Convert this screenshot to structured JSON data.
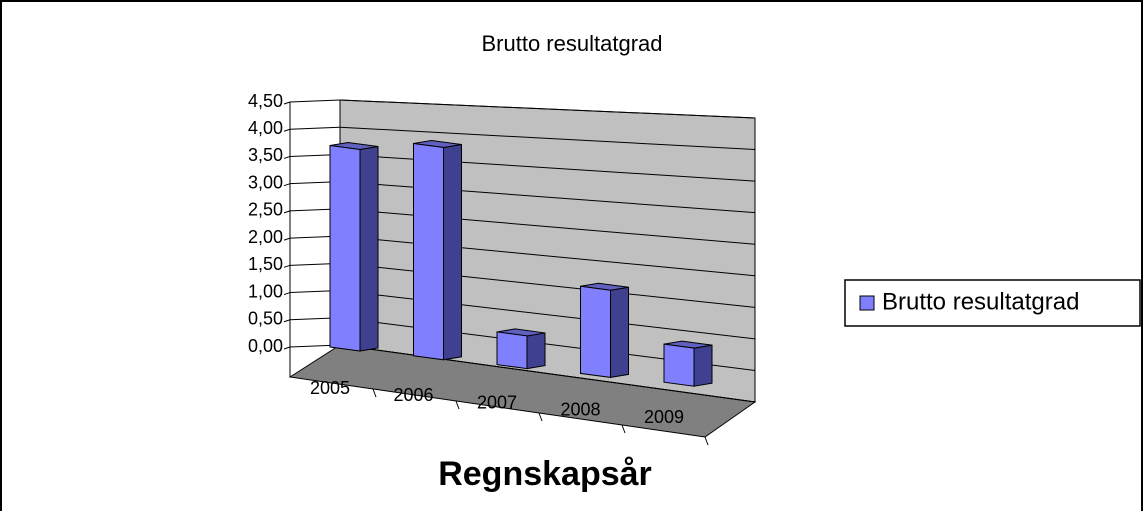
{
  "chart_data": {
    "type": "bar3d",
    "title": "Brutto resultatgrad",
    "categories": [
      "2005",
      "2006",
      "2007",
      "2008",
      "2009"
    ],
    "series": [
      {
        "name": "Brutto resultatgrad",
        "color": "#8080ff",
        "values": [
          3.7,
          3.9,
          0.6,
          1.6,
          0.7
        ]
      }
    ],
    "x_label": "Regnskapsår",
    "ylim": [
      0,
      4.5
    ],
    "yticks": [
      {
        "value": 0,
        "label": "0,00"
      },
      {
        "value": 0.5,
        "label": "0,50"
      },
      {
        "value": 1,
        "label": "1,00"
      },
      {
        "value": 1.5,
        "label": "1,50"
      },
      {
        "value": 2,
        "label": "2,00"
      },
      {
        "value": 2.5,
        "label": "2,50"
      },
      {
        "value": 3,
        "label": "3,00"
      },
      {
        "value": 3.5,
        "label": "3,50"
      },
      {
        "value": 4,
        "label": "4,00"
      },
      {
        "value": 4.5,
        "label": "4,50"
      }
    ],
    "grid": true,
    "legend": "right"
  }
}
